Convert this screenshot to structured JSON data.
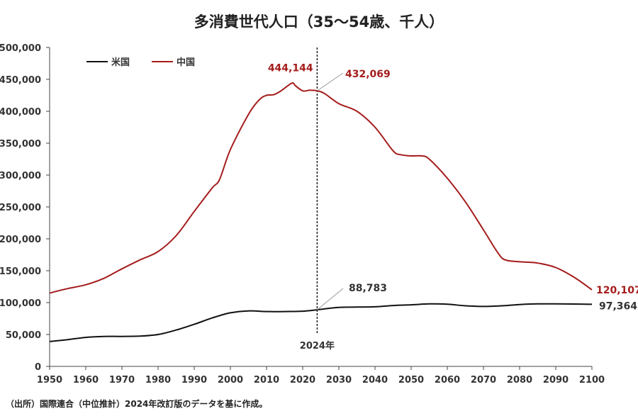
{
  "chart_data": {
    "type": "line",
    "title": "多消費世代人口（35～54歳、千人）",
    "xlabel": "",
    "ylabel": "",
    "xlim": [
      1950,
      2100
    ],
    "ylim": [
      0,
      500000
    ],
    "x_ticks": [
      "1950",
      "1960",
      "1970",
      "1980",
      "1990",
      "2000",
      "2010",
      "2020",
      "2030",
      "2040",
      "2050",
      "2060",
      "2070",
      "2080",
      "2090",
      "2100"
    ],
    "y_ticks": [
      "0",
      "50,000",
      "100,000",
      "150,000",
      "200,000",
      "250,000",
      "300,000",
      "350,000",
      "400,000",
      "450,000",
      "500,000"
    ],
    "grid": false,
    "legend": "top-left",
    "series": [
      {
        "name": "米国",
        "color": "#111111",
        "x": [
          1950,
          1955,
          1960,
          1965,
          1970,
          1975,
          1980,
          1985,
          1990,
          1995,
          2000,
          2005,
          2010,
          2015,
          2020,
          2024,
          2030,
          2035,
          2040,
          2045,
          2050,
          2055,
          2060,
          2065,
          2070,
          2075,
          2080,
          2085,
          2090,
          2095,
          2100
        ],
        "values": [
          39000,
          42000,
          45500,
          47000,
          47000,
          47500,
          50000,
          57000,
          66000,
          76000,
          84000,
          87000,
          86000,
          86000,
          86500,
          88783,
          92500,
          93000,
          93500,
          95500,
          96500,
          98000,
          97500,
          95000,
          94000,
          95000,
          97000,
          98000,
          98000,
          97800,
          97364
        ]
      },
      {
        "name": "中国",
        "color": "#a51c1c",
        "x": [
          1950,
          1955,
          1960,
          1965,
          1970,
          1975,
          1980,
          1985,
          1990,
          1995,
          1997,
          2000,
          2005,
          2008,
          2010,
          2012,
          2014,
          2017,
          2018,
          2020,
          2022,
          2024,
          2026,
          2030,
          2035,
          2040,
          2045,
          2047,
          2050,
          2053,
          2055,
          2060,
          2065,
          2070,
          2074,
          2076,
          2080,
          2085,
          2090,
          2095,
          2100
        ],
        "values": [
          115000,
          122000,
          128000,
          138000,
          153000,
          167000,
          180000,
          205000,
          243000,
          280000,
          293000,
          340000,
          395000,
          418000,
          425000,
          426000,
          432000,
          444144,
          440000,
          432000,
          433000,
          432069,
          428000,
          412000,
          400000,
          375000,
          338000,
          332000,
          330000,
          330000,
          325000,
          295000,
          258000,
          214000,
          178000,
          167000,
          164000,
          162000,
          155000,
          140000,
          120107
        ]
      }
    ],
    "annotations": [
      {
        "text": "444,144",
        "x": 2017,
        "y": 444144
      },
      {
        "text": "432,069",
        "x": 2024,
        "y": 432069
      },
      {
        "text": "88,783",
        "x": 2024,
        "y": 88783
      },
      {
        "text": "120,107",
        "x": 2100,
        "y": 120107
      },
      {
        "text": "97,364",
        "x": 2100,
        "y": 97364
      }
    ],
    "reference_line": {
      "x": 2024,
      "label": "2024年"
    }
  },
  "source": "（出所）国際連合（中位推計）2024年改訂版のデータを基に作成。"
}
